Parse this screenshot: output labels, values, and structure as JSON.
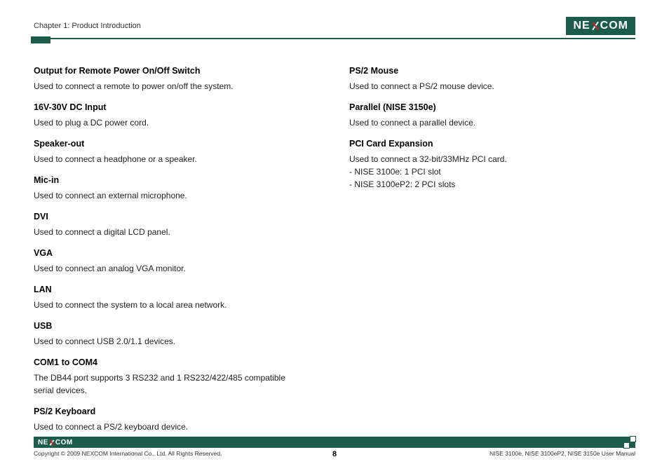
{
  "header": {
    "chapter": "Chapter 1: Product Introduction",
    "logo_parts": {
      "pre": "NE",
      "post": "COM"
    }
  },
  "left_column": [
    {
      "title": "Output for Remote Power On/Off Switch",
      "desc": "Used to connect a remote to power on/off the system."
    },
    {
      "title": "16V-30V DC Input",
      "desc": "Used to plug a DC power cord."
    },
    {
      "title": "Speaker-out",
      "desc": "Used to connect a headphone or a speaker."
    },
    {
      "title": "Mic-in",
      "desc": "Used to connect an external microphone."
    },
    {
      "title": "DVI",
      "desc": "Used to connect a digital LCD panel."
    },
    {
      "title": "VGA",
      "desc": "Used to connect an analog VGA monitor."
    },
    {
      "title": "LAN",
      "desc": "Used to connect the system to a local area network."
    },
    {
      "title": "USB",
      "desc": "Used to connect USB 2.0/1.1 devices."
    },
    {
      "title": "COM1 to COM4",
      "desc": "The DB44 port supports 3 RS232 and 1 RS232/422/485 compatible serial devices."
    },
    {
      "title": "PS/2 Keyboard",
      "desc": "Used to connect a PS/2 keyboard device."
    }
  ],
  "right_column": [
    {
      "title": "PS/2 Mouse",
      "desc": "Used to connect a PS/2 mouse device."
    },
    {
      "title": "Parallel (NISE 3150e)",
      "desc": "Used to connect a parallel device."
    },
    {
      "title": "PCI Card Expansion",
      "desc": "Used to connect a 32-bit/33MHz PCI card.",
      "bullets": [
        "NISE 3100e: 1 PCI slot",
        "NISE 3100eP2: 2 PCI slots"
      ]
    }
  ],
  "footer": {
    "copyright": "Copyright © 2009 NEXCOM International Co., Ltd. All Rights Reserved.",
    "page": "8",
    "doc": "NISE 3100e, NISE 3100eP2, NISE 3150e User Manual"
  },
  "colors": {
    "brand": "#1b5c4a",
    "accent_red": "#d02030",
    "text": "#222222",
    "bg": "#ffffff"
  }
}
